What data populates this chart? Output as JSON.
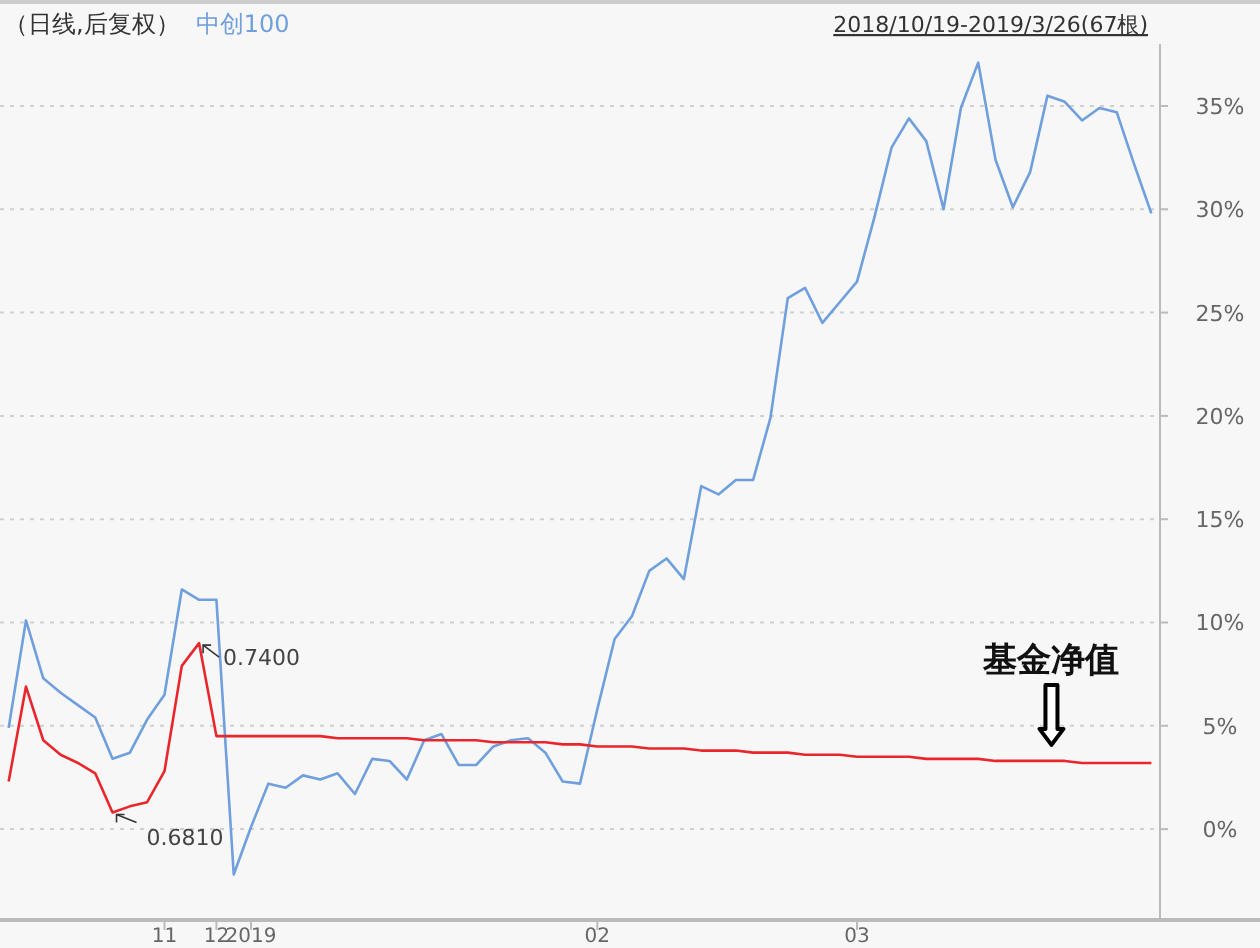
{
  "chart_data": {
    "type": "line",
    "title": "（日线,后复权）",
    "subtitle": "2018/10/19-2019/3/26(67根)",
    "categories": [
      null,
      null,
      null,
      null,
      null,
      null,
      null,
      null,
      null,
      "11",
      null,
      null,
      "12",
      null,
      "2019",
      null,
      null,
      null,
      null,
      null,
      null,
      null,
      null,
      null,
      null,
      null,
      null,
      null,
      null,
      null,
      null,
      null,
      null,
      null,
      "02",
      null,
      null,
      null,
      null,
      null,
      null,
      null,
      null,
      null,
      null,
      null,
      null,
      null,
      null,
      "03",
      null,
      null,
      null,
      null,
      null,
      null,
      null,
      null,
      null,
      null,
      null,
      null,
      null,
      null,
      null,
      null,
      null
    ],
    "ylim": [
      -4.4,
      38
    ],
    "yticks": [
      {
        "value": 0,
        "label": "0%"
      },
      {
        "value": 5,
        "label": "5%"
      },
      {
        "value": 10,
        "label": "10%"
      },
      {
        "value": 15,
        "label": "15%"
      },
      {
        "value": 20,
        "label": "20%"
      },
      {
        "value": 25,
        "label": "25%"
      },
      {
        "value": 30,
        "label": "30%"
      },
      {
        "value": 35,
        "label": "35%"
      }
    ],
    "grid": "y",
    "legend": "top left",
    "marker": "none",
    "line_style": "solid",
    "series": [
      {
        "name": "中创100",
        "color": "#6f9fdc",
        "values": [
          4.9,
          10.1,
          7.3,
          6.6,
          6.0,
          5.4,
          3.4,
          3.7,
          5.3,
          6.5,
          11.6,
          11.1,
          11.1,
          -2.2,
          0.1,
          2.2,
          2.0,
          2.6,
          2.4,
          2.7,
          1.7,
          3.4,
          3.3,
          2.4,
          4.3,
          4.6,
          3.1,
          3.1,
          4.0,
          4.3,
          4.4,
          3.7,
          2.3,
          2.2,
          5.8,
          9.2,
          10.3,
          12.5,
          13.1,
          12.1,
          16.6,
          16.2,
          16.9,
          16.9,
          19.9,
          25.7,
          26.2,
          24.5,
          25.5,
          26.5,
          29.6,
          33.0,
          34.4,
          33.3,
          30.0,
          34.9,
          37.1,
          32.4,
          30.1,
          31.8,
          35.5,
          35.2,
          34.3,
          34.9,
          34.7,
          32.2,
          29.8
        ]
      },
      {
        "color": "#e8262b",
        "values": [
          2.3,
          6.9,
          4.3,
          3.6,
          3.2,
          2.7,
          0.8,
          1.1,
          1.3,
          2.8,
          7.9,
          9.0,
          4.5,
          4.5,
          4.5,
          4.5,
          4.5,
          4.5,
          4.5,
          4.4,
          4.4,
          4.4,
          4.4,
          4.4,
          4.3,
          4.3,
          4.3,
          4.3,
          4.2,
          4.2,
          4.2,
          4.2,
          4.1,
          4.1,
          4.0,
          4.0,
          4.0,
          3.9,
          3.9,
          3.9,
          3.8,
          3.8,
          3.8,
          3.7,
          3.7,
          3.7,
          3.6,
          3.6,
          3.6,
          3.5,
          3.5,
          3.5,
          3.5,
          3.4,
          3.4,
          3.4,
          3.4,
          3.3,
          3.3,
          3.3,
          3.3,
          3.3,
          3.2,
          3.2,
          3.2,
          3.2,
          3.2
        ]
      }
    ],
    "annotations": [
      "0.7400",
      "0.6810",
      "基金净值"
    ]
  }
}
